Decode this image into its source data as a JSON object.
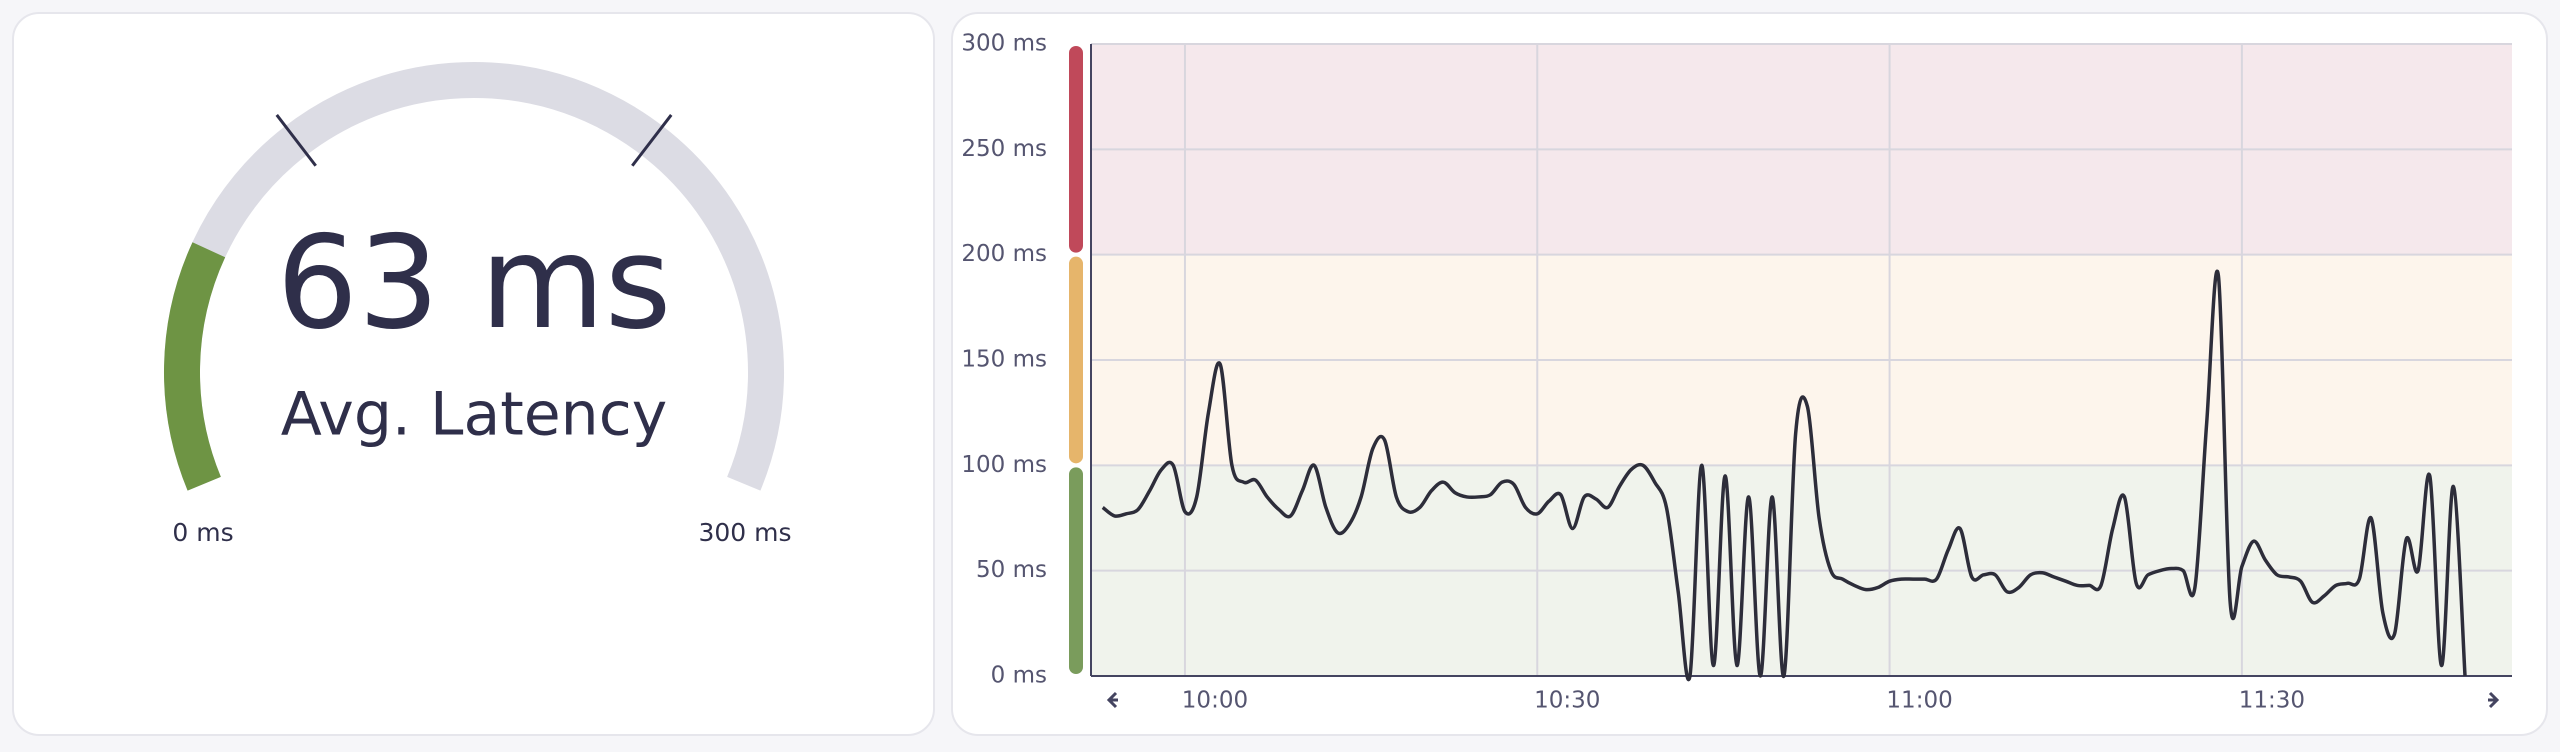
{
  "chart_data": [
    {
      "type": "gauge",
      "value": 63,
      "value_label": "63 ms",
      "label": "Avg. Latency",
      "min": 0,
      "max": 300,
      "min_label": "0 ms",
      "max_label": "300 ms",
      "thresholds": [
        100,
        200
      ],
      "color": "#6e9444",
      "track_color": "#dcdce4"
    },
    {
      "type": "line",
      "x": [
        "09:53",
        "09:54",
        "09:55",
        "09:56",
        "09:57",
        "09:58",
        "09:59",
        "10:00",
        "10:01",
        "10:02",
        "10:03",
        "10:04",
        "10:05",
        "10:06",
        "10:07",
        "10:08",
        "10:09",
        "10:10",
        "10:11",
        "10:12",
        "10:13",
        "10:14",
        "10:15",
        "10:16",
        "10:17",
        "10:18",
        "10:19",
        "10:20",
        "10:21",
        "10:22",
        "10:23",
        "10:24",
        "10:25",
        "10:26",
        "10:27",
        "10:28",
        "10:29",
        "10:30",
        "10:31",
        "10:32",
        "10:33",
        "10:34",
        "10:35",
        "10:36",
        "10:37",
        "10:38",
        "10:39",
        "10:40",
        "10:41",
        "10:42",
        "10:43",
        "10:44",
        "10:45",
        "10:46",
        "10:47",
        "10:48",
        "10:49",
        "10:50",
        "10:51",
        "10:52",
        "10:53",
        "10:54",
        "10:55",
        "10:56",
        "10:57",
        "10:58",
        "10:59",
        "11:00",
        "11:01",
        "11:02",
        "11:03",
        "11:04",
        "11:05",
        "11:06",
        "11:07",
        "11:08",
        "11:09",
        "11:10",
        "11:11",
        "11:12",
        "11:13",
        "11:14",
        "11:15",
        "11:16",
        "11:17",
        "11:18",
        "11:19",
        "11:20",
        "11:21",
        "11:22",
        "11:23",
        "11:24",
        "11:25",
        "11:26",
        "11:27",
        "11:28",
        "11:29",
        "11:30",
        "11:31",
        "11:32",
        "11:33",
        "11:34",
        "11:35",
        "11:36",
        "11:37",
        "11:38",
        "11:39",
        "11:40",
        "11:41",
        "11:42",
        "11:43",
        "11:44",
        "11:45",
        "11:46",
        "11:47",
        "11:48",
        "11:49"
      ],
      "series": [
        {
          "color": "#2d2d3a",
          "values": [
            80,
            76,
            77,
            79,
            88,
            98,
            100,
            78,
            85,
            125,
            148,
            100,
            92,
            93,
            85,
            79,
            76,
            88,
            100,
            80,
            68,
            72,
            85,
            108,
            112,
            85,
            78,
            80,
            88,
            92,
            87,
            85,
            85,
            86,
            92,
            91,
            80,
            77,
            83,
            86,
            70,
            85,
            84,
            80,
            90,
            98,
            100,
            92,
            80,
            40,
            0,
            100,
            5,
            95,
            5,
            85,
            0,
            85,
            0,
            115,
            128,
            75,
            50,
            46,
            43,
            41,
            42,
            45,
            46,
            46,
            46,
            46,
            60,
            70,
            47,
            48,
            48,
            40,
            42,
            48,
            49,
            47,
            45,
            43,
            43,
            43,
            70,
            85,
            44,
            48,
            50,
            51,
            50,
            42,
            120,
            190,
            35,
            52,
            64,
            55,
            48,
            47,
            45,
            35,
            38,
            43,
            44,
            46,
            75,
            30,
            20,
            65,
            50,
            95,
            5,
            90,
            0
          ]
        }
      ],
      "xlim": [
        "09:52",
        "11:53"
      ],
      "xticks": [
        "10:00",
        "10:30",
        "11:00",
        "11:30"
      ],
      "ylim": [
        0,
        300
      ],
      "yticks": [
        {
          "value": 0,
          "label": "0 ms"
        },
        {
          "value": 50,
          "label": "50 ms"
        },
        {
          "value": 100,
          "label": "100 ms"
        },
        {
          "value": 150,
          "label": "150 ms"
        },
        {
          "value": 200,
          "label": "200 ms"
        },
        {
          "value": 250,
          "label": "250 ms"
        },
        {
          "value": 300,
          "label": "300 ms"
        }
      ],
      "bands": [
        {
          "from": 0,
          "to": 100,
          "color": "#f0f3ec",
          "bar_color": "#7a9c5c"
        },
        {
          "from": 100,
          "to": 200,
          "color": "#fdf5ec",
          "bar_color": "#e6b56b"
        },
        {
          "from": 200,
          "to": 300,
          "color": "#f5e8ec",
          "bar_color": "#c0495a"
        }
      ],
      "grid": true
    }
  ]
}
